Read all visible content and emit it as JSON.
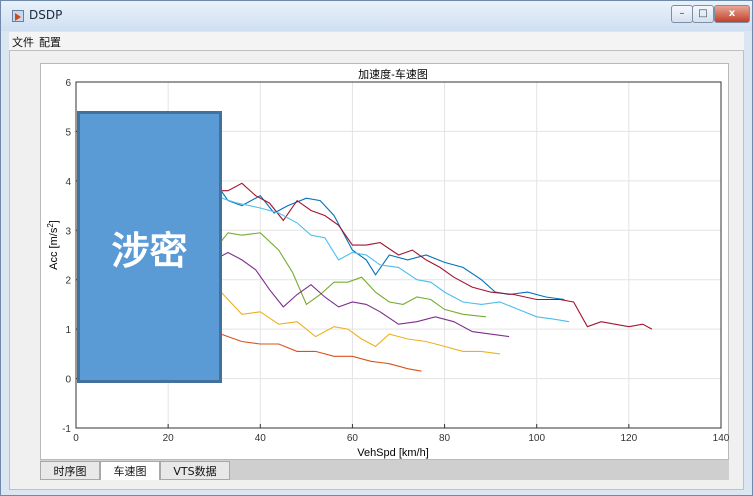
{
  "window": {
    "title": "DSDP",
    "min": "–",
    "max": "□",
    "close": "x"
  },
  "menu": [
    "文件",
    "配置"
  ],
  "tabs": [
    {
      "label": "时序图",
      "active": false
    },
    {
      "label": "车速图",
      "active": true
    },
    {
      "label": "VTS数据",
      "active": false
    }
  ],
  "stamp": "涉密",
  "chart_data": {
    "type": "line",
    "title": "加速度-车速图",
    "xlabel": "VehSpd [km/h]",
    "ylabel": "Acc [m/s",
    "ylabel_sup": "2",
    "ylabel_end": "]",
    "xlim": [
      0,
      140
    ],
    "ylim": [
      -1,
      6
    ],
    "xticks": [
      0,
      20,
      40,
      60,
      80,
      100,
      120,
      140
    ],
    "yticks": [
      -1,
      0,
      1,
      2,
      3,
      4,
      5,
      6
    ],
    "grid": true,
    "series": [
      {
        "color": "#0072BD",
        "points": [
          [
            30,
            4.0
          ],
          [
            33,
            3.6
          ],
          [
            36,
            3.5
          ],
          [
            40,
            3.7
          ],
          [
            43,
            3.35
          ],
          [
            46,
            3.5
          ],
          [
            50,
            3.65
          ],
          [
            53,
            3.6
          ],
          [
            56,
            3.3
          ],
          [
            60,
            2.6
          ],
          [
            63,
            2.4
          ],
          [
            65,
            2.1
          ],
          [
            68,
            2.5
          ],
          [
            72,
            2.4
          ],
          [
            76,
            2.5
          ],
          [
            80,
            2.35
          ],
          [
            84,
            2.25
          ],
          [
            88,
            2.0
          ],
          [
            91,
            1.75
          ],
          [
            94,
            1.7
          ],
          [
            98,
            1.75
          ],
          [
            102,
            1.65
          ],
          [
            106,
            1.6
          ]
        ]
      },
      {
        "color": "#A2142F",
        "points": [
          [
            30,
            3.8
          ],
          [
            33,
            3.8
          ],
          [
            36,
            3.95
          ],
          [
            39,
            3.7
          ],
          [
            42,
            3.55
          ],
          [
            45,
            3.2
          ],
          [
            48,
            3.6
          ],
          [
            51,
            3.4
          ],
          [
            54,
            3.3
          ],
          [
            57,
            3.1
          ],
          [
            60,
            2.7
          ],
          [
            63,
            2.7
          ],
          [
            66,
            2.75
          ],
          [
            70,
            2.5
          ],
          [
            73,
            2.6
          ],
          [
            76,
            2.4
          ],
          [
            79,
            2.25
          ],
          [
            82,
            2.05
          ],
          [
            86,
            1.85
          ],
          [
            90,
            1.75
          ],
          [
            95,
            1.7
          ],
          [
            100,
            1.6
          ],
          [
            105,
            1.6
          ],
          [
            108,
            1.55
          ],
          [
            111,
            1.05
          ],
          [
            114,
            1.15
          ],
          [
            117,
            1.1
          ],
          [
            120,
            1.05
          ],
          [
            123,
            1.1
          ],
          [
            125,
            1.0
          ]
        ]
      },
      {
        "color": "#4DBEEE",
        "points": [
          [
            30,
            3.7
          ],
          [
            35,
            3.55
          ],
          [
            40,
            3.45
          ],
          [
            44,
            3.35
          ],
          [
            48,
            3.15
          ],
          [
            51,
            2.9
          ],
          [
            54,
            2.85
          ],
          [
            57,
            2.4
          ],
          [
            60,
            2.55
          ],
          [
            63,
            2.5
          ],
          [
            66,
            2.3
          ],
          [
            70,
            2.25
          ],
          [
            74,
            2.0
          ],
          [
            77,
            1.95
          ],
          [
            80,
            1.75
          ],
          [
            84,
            1.55
          ],
          [
            88,
            1.5
          ],
          [
            92,
            1.55
          ],
          [
            96,
            1.4
          ],
          [
            100,
            1.25
          ],
          [
            104,
            1.2
          ],
          [
            107,
            1.15
          ]
        ]
      },
      {
        "color": "#77AC30",
        "points": [
          [
            30,
            2.6
          ],
          [
            33,
            2.95
          ],
          [
            36,
            2.9
          ],
          [
            40,
            2.95
          ],
          [
            44,
            2.6
          ],
          [
            47,
            2.15
          ],
          [
            50,
            1.5
          ],
          [
            53,
            1.7
          ],
          [
            56,
            1.95
          ],
          [
            59,
            1.95
          ],
          [
            62,
            2.05
          ],
          [
            65,
            1.75
          ],
          [
            68,
            1.55
          ],
          [
            71,
            1.5
          ],
          [
            74,
            1.65
          ],
          [
            77,
            1.6
          ],
          [
            80,
            1.4
          ],
          [
            84,
            1.3
          ],
          [
            89,
            1.25
          ]
        ]
      },
      {
        "color": "#7E2F8E",
        "points": [
          [
            30,
            2.4
          ],
          [
            33,
            2.55
          ],
          [
            36,
            2.4
          ],
          [
            39,
            2.2
          ],
          [
            42,
            1.8
          ],
          [
            45,
            1.45
          ],
          [
            48,
            1.7
          ],
          [
            51,
            1.9
          ],
          [
            54,
            1.65
          ],
          [
            57,
            1.45
          ],
          [
            60,
            1.55
          ],
          [
            63,
            1.5
          ],
          [
            66,
            1.35
          ],
          [
            70,
            1.1
          ],
          [
            74,
            1.15
          ],
          [
            78,
            1.25
          ],
          [
            82,
            1.15
          ],
          [
            86,
            0.95
          ],
          [
            90,
            0.9
          ],
          [
            94,
            0.85
          ]
        ]
      },
      {
        "color": "#EDB120",
        "points": [
          [
            30,
            1.9
          ],
          [
            33,
            1.6
          ],
          [
            36,
            1.3
          ],
          [
            40,
            1.35
          ],
          [
            44,
            1.1
          ],
          [
            48,
            1.15
          ],
          [
            52,
            0.85
          ],
          [
            56,
            1.05
          ],
          [
            59,
            1.0
          ],
          [
            62,
            0.8
          ],
          [
            65,
            0.65
          ],
          [
            68,
            0.9
          ],
          [
            72,
            0.8
          ],
          [
            76,
            0.75
          ],
          [
            80,
            0.65
          ],
          [
            84,
            0.55
          ],
          [
            88,
            0.55
          ],
          [
            92,
            0.5
          ]
        ]
      },
      {
        "color": "#D95319",
        "points": [
          [
            30,
            0.95
          ],
          [
            33,
            0.85
          ],
          [
            36,
            0.75
          ],
          [
            40,
            0.7
          ],
          [
            44,
            0.7
          ],
          [
            48,
            0.55
          ],
          [
            52,
            0.55
          ],
          [
            56,
            0.45
          ],
          [
            60,
            0.45
          ],
          [
            64,
            0.35
          ],
          [
            68,
            0.3
          ],
          [
            72,
            0.2
          ],
          [
            75,
            0.15
          ]
        ]
      }
    ]
  }
}
